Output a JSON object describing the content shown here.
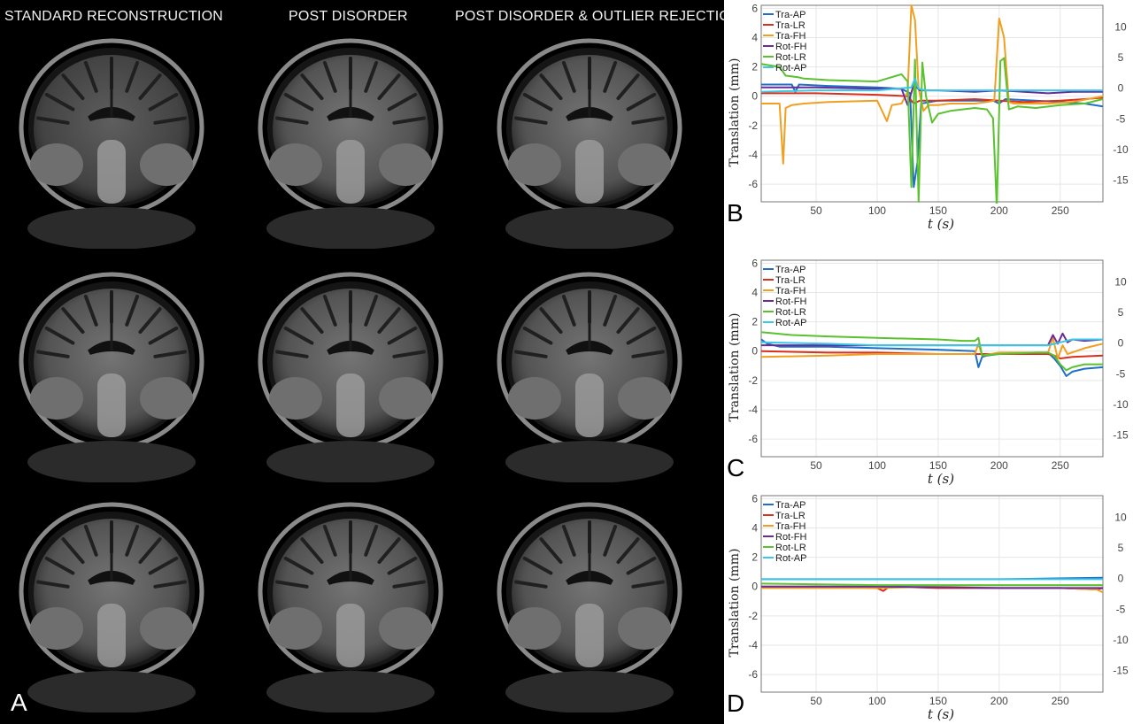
{
  "panel_a": {
    "letter": "A",
    "column_titles": [
      "STANDARD RECONSTRUCTION",
      "POST  DISORDER",
      "POST  DISORDER & OUTLIER REJECTION"
    ]
  },
  "chart_data": [
    {
      "type": "line",
      "panel": "B",
      "xlabel": "t (s)",
      "ylabel": "Translation (mm)",
      "xlim": [
        5,
        285
      ],
      "ylim": [
        -7.2,
        6.2
      ],
      "y2lim": [
        -18.5,
        13.5
      ],
      "xticks": [
        50,
        100,
        150,
        200,
        250
      ],
      "yticks": [
        -6,
        -4,
        -2,
        0,
        2,
        4,
        6
      ],
      "y2ticks": [
        -15,
        -10,
        -5,
        0,
        5,
        10
      ],
      "grid": true,
      "legend": "top-left",
      "series": [
        {
          "name": "Tra-AP",
          "color": "#1f6fc5",
          "x": [
            5,
            30,
            33,
            36,
            60,
            100,
            120,
            127,
            130,
            133,
            136,
            150,
            180,
            195,
            200,
            205,
            230,
            250,
            270,
            285
          ],
          "y": [
            0.8,
            0.8,
            0.3,
            0.8,
            0.7,
            0.6,
            0.5,
            0.2,
            -6.2,
            -4.5,
            -0.5,
            -0.3,
            -0.3,
            -0.3,
            -0.5,
            -0.2,
            -0.3,
            -0.4,
            -0.5,
            -0.7
          ]
        },
        {
          "name": "Tra-LR",
          "color": "#d9301e",
          "x": [
            5,
            50,
            100,
            125,
            130,
            135,
            150,
            180,
            200,
            220,
            250,
            270,
            285
          ],
          "y": [
            0.2,
            0.2,
            0.1,
            0.0,
            -0.5,
            -0.3,
            -0.3,
            -0.2,
            -0.3,
            -0.4,
            -0.3,
            -0.2,
            -0.1
          ]
        },
        {
          "name": "Tra-FH",
          "color": "#f0a020",
          "x": [
            5,
            20,
            23,
            25,
            30,
            40,
            60,
            100,
            108,
            112,
            120,
            125,
            128,
            131,
            134,
            138,
            142,
            150,
            160,
            170,
            180,
            190,
            196,
            200,
            204,
            208,
            212,
            220,
            240,
            260,
            285
          ],
          "y": [
            -0.5,
            -0.5,
            -4.6,
            -0.8,
            -0.6,
            -0.5,
            -0.4,
            -0.3,
            -1.7,
            -0.6,
            -0.5,
            0.3,
            6.2,
            5.2,
            0.5,
            -1.0,
            -0.6,
            -0.6,
            -0.5,
            -0.5,
            -0.5,
            -0.4,
            -0.3,
            5.3,
            4.0,
            -0.4,
            -0.5,
            -0.5,
            -0.5,
            -0.4,
            0.0
          ]
        },
        {
          "name": "Rot-FH",
          "color": "#6a2a9a",
          "x": [
            5,
            50,
            100,
            120,
            125,
            130,
            135,
            150,
            180,
            200,
            220,
            240,
            260,
            285
          ],
          "y": [
            0.6,
            0.6,
            0.5,
            0.5,
            -0.6,
            0.8,
            0.4,
            0.4,
            0.3,
            0.4,
            0.3,
            0.2,
            0.3,
            0.3
          ]
        },
        {
          "name": "Rot-LR",
          "color": "#5ac12f",
          "x": [
            5,
            20,
            25,
            35,
            40,
            60,
            100,
            120,
            125,
            128,
            131,
            134,
            137,
            140,
            145,
            150,
            160,
            180,
            190,
            195,
            198,
            201,
            204,
            208,
            215,
            230,
            250,
            270,
            285
          ],
          "y": [
            2.2,
            2.0,
            1.4,
            1.3,
            1.2,
            1.1,
            1.0,
            1.5,
            1.0,
            -6.2,
            2.5,
            -7.2,
            2.3,
            0.0,
            -1.8,
            -1.2,
            -1.0,
            -0.8,
            -0.9,
            -1.5,
            -7.6,
            2.4,
            2.6,
            -0.9,
            -0.7,
            -0.8,
            -0.6,
            -0.5,
            -0.2
          ]
        },
        {
          "name": "Rot-AP",
          "color": "#39c8e6",
          "x": [
            5,
            50,
            100,
            128,
            131,
            134,
            140,
            160,
            200,
            230,
            260,
            285
          ],
          "y": [
            0.3,
            0.4,
            0.4,
            0.6,
            1.2,
            0.5,
            0.4,
            0.4,
            0.4,
            0.4,
            0.4,
            0.4
          ]
        }
      ]
    },
    {
      "type": "line",
      "panel": "C",
      "xlabel": "t (s)",
      "ylabel": "Translation (mm)",
      "xlim": [
        5,
        285
      ],
      "ylim": [
        -7.2,
        6.2
      ],
      "y2lim": [
        -18.5,
        13.5
      ],
      "xticks": [
        50,
        100,
        150,
        200,
        250
      ],
      "yticks": [
        -6,
        -4,
        -2,
        0,
        2,
        4,
        6
      ],
      "y2ticks": [
        -15,
        -10,
        -5,
        0,
        5,
        10
      ],
      "grid": true,
      "legend": "top-left",
      "series": [
        {
          "name": "Tra-AP",
          "color": "#1f6fc5",
          "x": [
            5,
            10,
            20,
            60,
            100,
            150,
            180,
            183,
            186,
            190,
            200,
            230,
            240,
            245,
            250,
            255,
            260,
            270,
            285
          ],
          "y": [
            0.8,
            0.5,
            0.3,
            0.3,
            0.2,
            0.1,
            0.0,
            -1.1,
            -0.4,
            -0.3,
            -0.2,
            -0.1,
            -0.1,
            -0.5,
            -1.0,
            -1.7,
            -1.4,
            -1.2,
            -1.1
          ]
        },
        {
          "name": "Tra-LR",
          "color": "#d9301e",
          "x": [
            5,
            60,
            100,
            150,
            180,
            200,
            240,
            245,
            250,
            260,
            285
          ],
          "y": [
            0.0,
            -0.1,
            -0.1,
            -0.2,
            -0.2,
            -0.2,
            -0.2,
            -0.3,
            -0.5,
            -0.4,
            -0.3
          ]
        },
        {
          "name": "Tra-FH",
          "color": "#f0a020",
          "x": [
            5,
            60,
            100,
            150,
            180,
            183,
            186,
            200,
            240,
            244,
            248,
            252,
            256,
            270,
            285
          ],
          "y": [
            -0.4,
            -0.3,
            -0.2,
            -0.2,
            -0.2,
            0.5,
            -0.3,
            -0.1,
            -0.1,
            0.9,
            -0.5,
            0.4,
            -0.2,
            0.2,
            0.5
          ]
        },
        {
          "name": "Rot-FH",
          "color": "#6a2a9a",
          "x": [
            5,
            60,
            100,
            150,
            180,
            200,
            230,
            240,
            244,
            248,
            252,
            256,
            260,
            270,
            285
          ],
          "y": [
            0.4,
            0.4,
            0.4,
            0.4,
            0.4,
            0.4,
            0.4,
            0.4,
            1.1,
            0.5,
            1.2,
            0.6,
            0.8,
            0.7,
            0.8
          ]
        },
        {
          "name": "Rot-LR",
          "color": "#5ac12f",
          "x": [
            5,
            30,
            60,
            100,
            150,
            170,
            180,
            183,
            186,
            200,
            230,
            240,
            245,
            250,
            255,
            260,
            270,
            285
          ],
          "y": [
            1.3,
            1.1,
            1.0,
            0.9,
            0.8,
            0.7,
            0.7,
            0.9,
            -0.3,
            -0.2,
            -0.1,
            -0.1,
            -0.3,
            -0.9,
            -1.3,
            -1.1,
            -0.9,
            -0.9
          ]
        },
        {
          "name": "Rot-AP",
          "color": "#39c8e6",
          "x": [
            5,
            60,
            100,
            150,
            200,
            240,
            250,
            260,
            285
          ],
          "y": [
            0.6,
            0.5,
            0.4,
            0.4,
            0.4,
            0.4,
            0.6,
            0.8,
            0.8
          ]
        }
      ]
    },
    {
      "type": "line",
      "panel": "D",
      "xlabel": "t (s)",
      "ylabel": "Translation (mm)",
      "xlim": [
        5,
        285
      ],
      "ylim": [
        -7.2,
        6.2
      ],
      "y2lim": [
        -18.5,
        13.5
      ],
      "xticks": [
        50,
        100,
        150,
        200,
        250
      ],
      "yticks": [
        -6,
        -4,
        -2,
        0,
        2,
        4,
        6
      ],
      "y2ticks": [
        -15,
        -10,
        -5,
        0,
        5,
        10
      ],
      "grid": true,
      "legend": "top-left",
      "series": [
        {
          "name": "Tra-AP",
          "color": "#1f6fc5",
          "x": [
            5,
            100,
            200,
            285
          ],
          "y": [
            0.5,
            0.5,
            0.5,
            0.6
          ]
        },
        {
          "name": "Tra-LR",
          "color": "#d9301e",
          "x": [
            5,
            50,
            100,
            105,
            110,
            150,
            200,
            250,
            280,
            285
          ],
          "y": [
            0.0,
            0.0,
            -0.1,
            -0.3,
            0.0,
            -0.1,
            -0.1,
            -0.1,
            -0.2,
            -0.1
          ]
        },
        {
          "name": "Tra-FH",
          "color": "#f0a020",
          "x": [
            5,
            50,
            100,
            150,
            200,
            250,
            280,
            285
          ],
          "y": [
            -0.1,
            -0.1,
            -0.1,
            0.0,
            -0.1,
            -0.1,
            -0.2,
            -0.4
          ]
        },
        {
          "name": "Rot-FH",
          "color": "#6a2a9a",
          "x": [
            5,
            100,
            200,
            285
          ],
          "y": [
            0.0,
            0.0,
            -0.1,
            -0.1
          ]
        },
        {
          "name": "Rot-LR",
          "color": "#5ac12f",
          "x": [
            5,
            100,
            200,
            285
          ],
          "y": [
            0.2,
            0.1,
            0.1,
            0.1
          ]
        },
        {
          "name": "Rot-AP",
          "color": "#39c8e6",
          "x": [
            5,
            100,
            200,
            285
          ],
          "y": [
            0.5,
            0.5,
            0.5,
            0.5
          ]
        }
      ]
    }
  ]
}
